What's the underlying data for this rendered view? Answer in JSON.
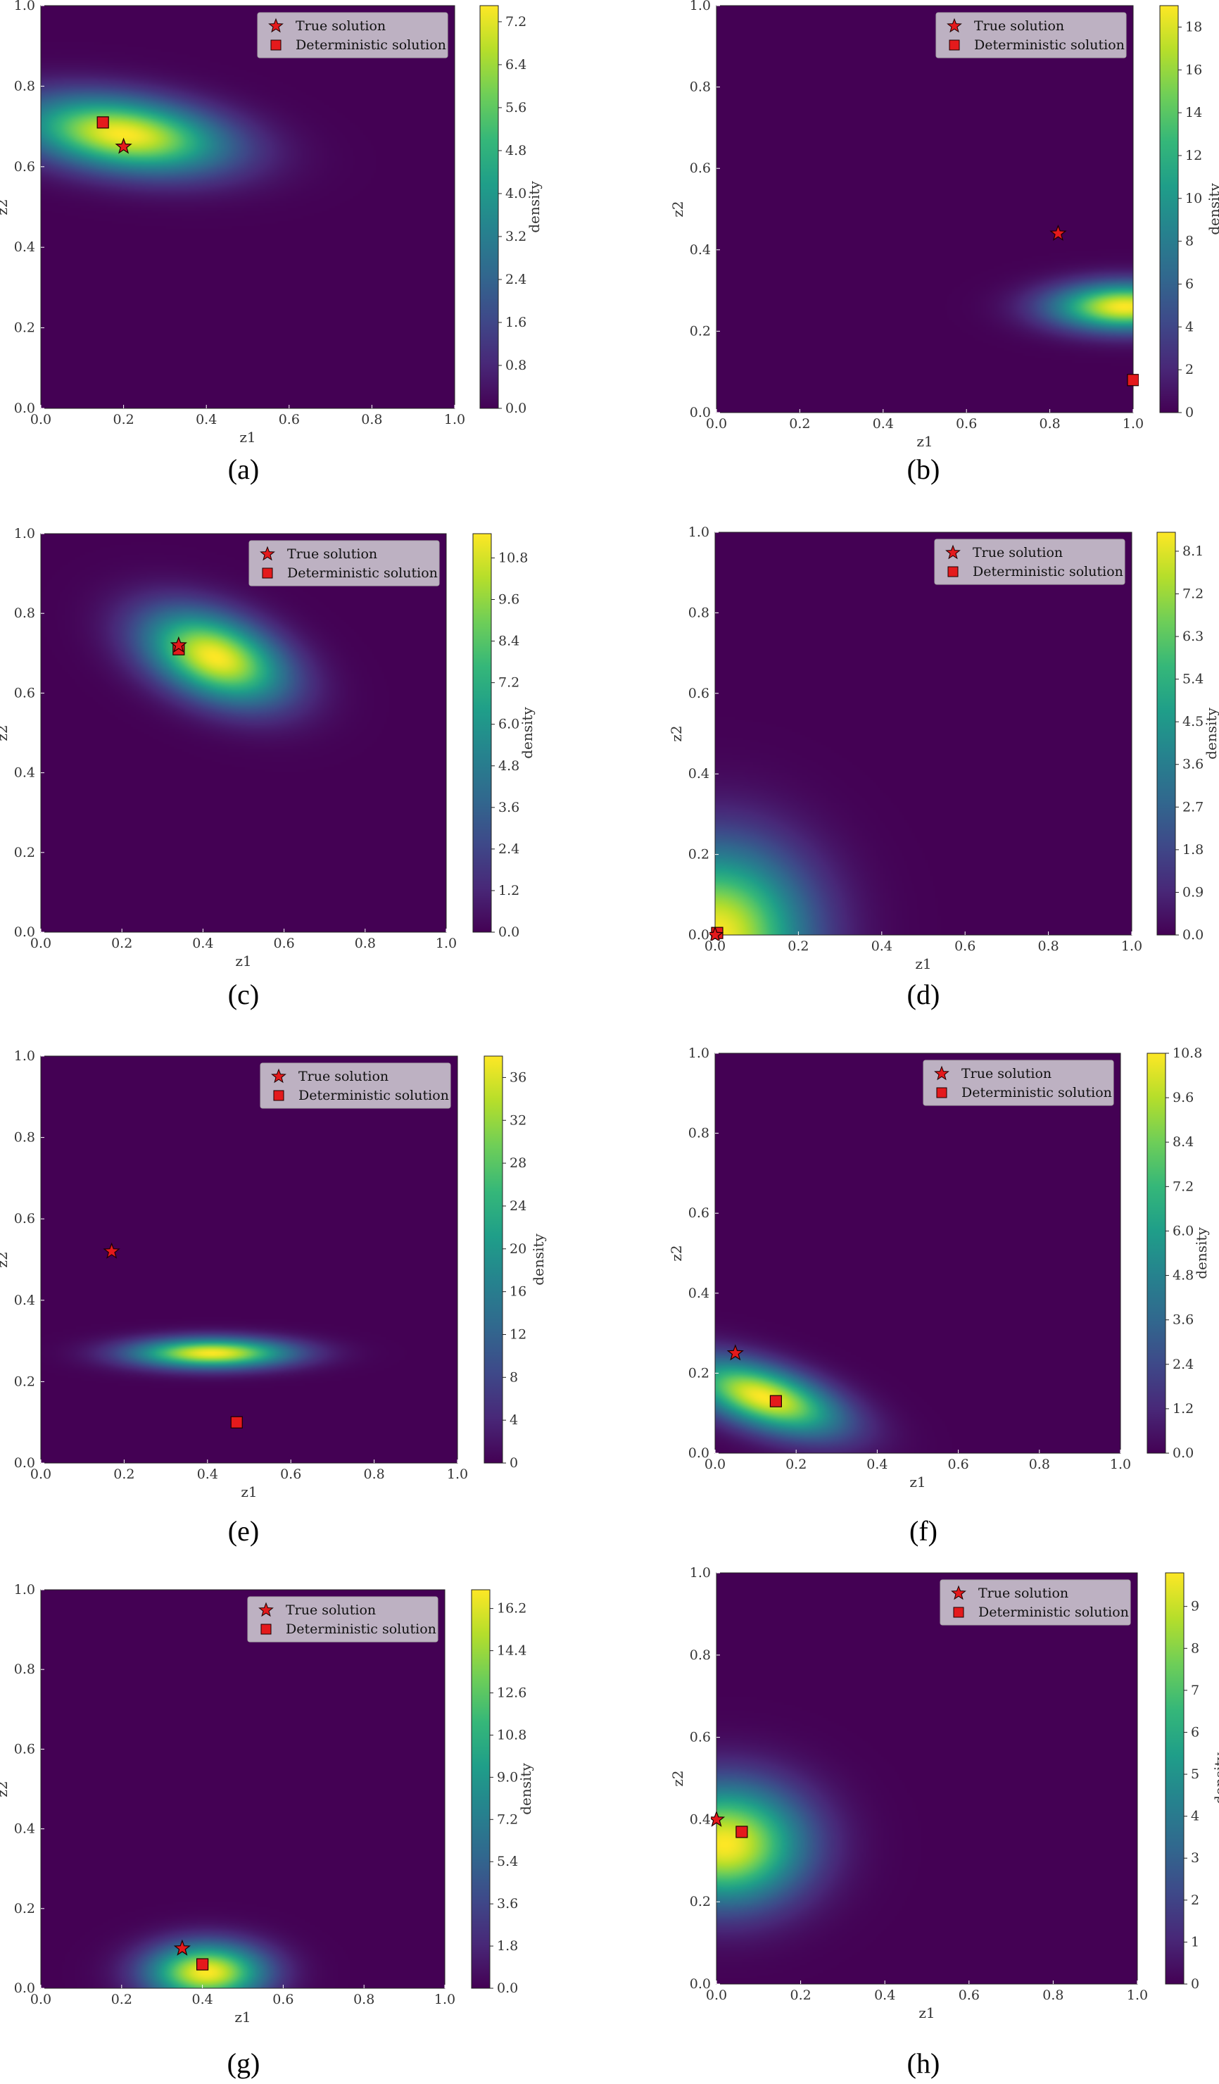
{
  "colors": {
    "viridis": [
      "#440154",
      "#482878",
      "#3e4989",
      "#31688e",
      "#26828e",
      "#1f9e89",
      "#35b779",
      "#6ece58",
      "#b5de2b",
      "#fde725"
    ],
    "marker_fill": "#e41a1c",
    "marker_edge": "#1a0000",
    "legend_bg": "#c8c0cc"
  },
  "legend": {
    "true_label": "True solution",
    "det_label": "Deterministic solution",
    "true_icon": "red-star-icon",
    "det_icon": "red-square-icon"
  },
  "chart_data": [
    {
      "type": "heatmap",
      "caption": "(a)",
      "xlabel": "z1",
      "ylabel": "z2",
      "cbar_label": "density",
      "xlim": [
        0,
        1
      ],
      "ylim": [
        0,
        1
      ],
      "xticks": [
        "0.0",
        "0.2",
        "0.4",
        "0.6",
        "0.8",
        "1.0"
      ],
      "yticks": [
        "0.0",
        "0.2",
        "0.4",
        "0.6",
        "0.8",
        "1.0"
      ],
      "cbar_max": 7.5,
      "cbar_ticks": [
        "0.0",
        "0.8",
        "1.6",
        "2.4",
        "3.2",
        "4.0",
        "4.8",
        "5.6",
        "6.4",
        "7.2"
      ],
      "density_peak": {
        "x": 0.2,
        "y": 0.68,
        "sx": 0.17,
        "sy": 0.065,
        "rho": -0.3
      },
      "true_solution": {
        "x": 0.2,
        "y": 0.65
      },
      "deterministic_solution": {
        "x": 0.15,
        "y": 0.71
      }
    },
    {
      "type": "heatmap",
      "caption": "(b)",
      "xlabel": "z1",
      "ylabel": "z2",
      "cbar_label": "density",
      "xlim": [
        0,
        1
      ],
      "ylim": [
        0,
        1
      ],
      "xticks": [
        "0.0",
        "0.2",
        "0.4",
        "0.6",
        "0.8",
        "1.0"
      ],
      "yticks": [
        "0.0",
        "0.2",
        "0.4",
        "0.6",
        "0.8",
        "1.0"
      ],
      "cbar_max": 19,
      "cbar_ticks": [
        "0",
        "2",
        "4",
        "6",
        "8",
        "10",
        "12",
        "14",
        "16",
        "18"
      ],
      "density_peak": {
        "x": 0.98,
        "y": 0.26,
        "sx": 0.12,
        "sy": 0.04,
        "rho": 0
      },
      "true_solution": {
        "x": 0.82,
        "y": 0.44
      },
      "deterministic_solution": {
        "x": 1.0,
        "y": 0.08
      }
    },
    {
      "type": "heatmap",
      "caption": "(c)",
      "xlabel": "z1",
      "ylabel": "z2",
      "cbar_label": "density",
      "xlim": [
        0,
        1
      ],
      "ylim": [
        0,
        1
      ],
      "xticks": [
        "0.0",
        "0.2",
        "0.4",
        "0.6",
        "0.8",
        "1.0"
      ],
      "yticks": [
        "0.0",
        "0.2",
        "0.4",
        "0.6",
        "0.8",
        "1.0"
      ],
      "cbar_max": 11.5,
      "cbar_ticks": [
        "0.0",
        "1.2",
        "2.4",
        "3.6",
        "4.8",
        "6.0",
        "7.2",
        "8.4",
        "9.6",
        "10.8"
      ],
      "density_peak": {
        "x": 0.43,
        "y": 0.69,
        "sx": 0.12,
        "sy": 0.08,
        "rho": -0.4
      },
      "true_solution": {
        "x": 0.34,
        "y": 0.72
      },
      "deterministic_solution": {
        "x": 0.34,
        "y": 0.71
      }
    },
    {
      "type": "heatmap",
      "caption": "(d)",
      "xlabel": "z1",
      "ylabel": "z2",
      "cbar_label": "density",
      "xlim": [
        0,
        1
      ],
      "ylim": [
        0,
        1
      ],
      "xticks": [
        "0.0",
        "0.2",
        "0.4",
        "0.6",
        "0.8",
        "1.0"
      ],
      "yticks": [
        "0.0",
        "0.2",
        "0.4",
        "0.6",
        "0.8",
        "1.0"
      ],
      "cbar_max": 8.5,
      "cbar_ticks": [
        "0.0",
        "0.9",
        "1.8",
        "2.7",
        "3.6",
        "4.5",
        "5.4",
        "6.3",
        "7.2",
        "8.1"
      ],
      "density_peak": {
        "x": 0.0,
        "y": 0.0,
        "sx": 0.15,
        "sy": 0.15,
        "rho": 0
      },
      "density_streak": {
        "y": 0.03,
        "len": 0.25
      },
      "true_solution": {
        "x": 0.0,
        "y": 0.0
      },
      "deterministic_solution": {
        "x": 0.005,
        "y": 0.005
      }
    },
    {
      "type": "heatmap",
      "caption": "(e)",
      "xlabel": "z1",
      "ylabel": "z2",
      "cbar_label": "density",
      "xlim": [
        0,
        1
      ],
      "ylim": [
        0,
        1
      ],
      "xticks": [
        "0.0",
        "0.2",
        "0.4",
        "0.6",
        "0.8",
        "1.0"
      ],
      "yticks": [
        "0.0",
        "0.2",
        "0.4",
        "0.6",
        "0.8",
        "1.0"
      ],
      "cbar_max": 38,
      "cbar_ticks": [
        "0",
        "4",
        "8",
        "12",
        "16",
        "20",
        "24",
        "28",
        "32",
        "36"
      ],
      "density_peak": {
        "x": 0.41,
        "y": 0.27,
        "sx": 0.13,
        "sy": 0.025,
        "rho": 0
      },
      "true_solution": {
        "x": 0.17,
        "y": 0.52
      },
      "deterministic_solution": {
        "x": 0.47,
        "y": 0.1
      }
    },
    {
      "type": "heatmap",
      "caption": "(f)",
      "xlabel": "z1",
      "ylabel": "z2",
      "cbar_label": "density",
      "xlim": [
        0,
        1
      ],
      "ylim": [
        0,
        1
      ],
      "xticks": [
        "0.0",
        "0.2",
        "0.4",
        "0.6",
        "0.8",
        "1.0"
      ],
      "yticks": [
        "0.0",
        "0.2",
        "0.4",
        "0.6",
        "0.8",
        "1.0"
      ],
      "cbar_max": 10.8,
      "cbar_ticks": [
        "0.0",
        "1.2",
        "2.4",
        "3.6",
        "4.8",
        "6.0",
        "7.2",
        "8.4",
        "9.6",
        "10.8"
      ],
      "density_peak": {
        "x": 0.12,
        "y": 0.14,
        "sx": 0.13,
        "sy": 0.065,
        "rho": -0.55
      },
      "true_solution": {
        "x": 0.05,
        "y": 0.25
      },
      "deterministic_solution": {
        "x": 0.15,
        "y": 0.13
      }
    },
    {
      "type": "heatmap",
      "caption": "(g)",
      "xlabel": "z1",
      "ylabel": "z2",
      "cbar_label": "density",
      "xlim": [
        0,
        1
      ],
      "ylim": [
        0,
        1
      ],
      "xticks": [
        "0.0",
        "0.2",
        "0.4",
        "0.6",
        "0.8",
        "1.0"
      ],
      "yticks": [
        "0.0",
        "0.2",
        "0.4",
        "0.6",
        "0.8",
        "1.0"
      ],
      "cbar_max": 17,
      "cbar_ticks": [
        "0.0",
        "1.8",
        "3.6",
        "5.4",
        "7.2",
        "9.0",
        "10.8",
        "12.6",
        "14.4",
        "16.2"
      ],
      "density_peak": {
        "x": 0.41,
        "y": 0.04,
        "sx": 0.1,
        "sy": 0.05,
        "rho": 0
      },
      "true_solution": {
        "x": 0.35,
        "y": 0.1
      },
      "deterministic_solution": {
        "x": 0.4,
        "y": 0.06
      }
    },
    {
      "type": "heatmap",
      "caption": "(h)",
      "xlabel": "z1",
      "ylabel": "z2",
      "cbar_label": "density",
      "xlim": [
        0,
        1
      ],
      "ylim": [
        0,
        1
      ],
      "xticks": [
        "0.0",
        "0.2",
        "0.4",
        "0.6",
        "0.8",
        "1.0"
      ],
      "yticks": [
        "0.0",
        "0.2",
        "0.4",
        "0.6",
        "0.8",
        "1.0"
      ],
      "cbar_max": 9.8,
      "cbar_ticks": [
        "0",
        "1",
        "2",
        "3",
        "4",
        "5",
        "6",
        "7",
        "8",
        "9"
      ],
      "density_peak": {
        "x": 0.02,
        "y": 0.34,
        "sx": 0.13,
        "sy": 0.1,
        "rho": 0
      },
      "true_solution": {
        "x": 0.0,
        "y": 0.4
      },
      "deterministic_solution": {
        "x": 0.06,
        "y": 0.37
      }
    }
  ]
}
